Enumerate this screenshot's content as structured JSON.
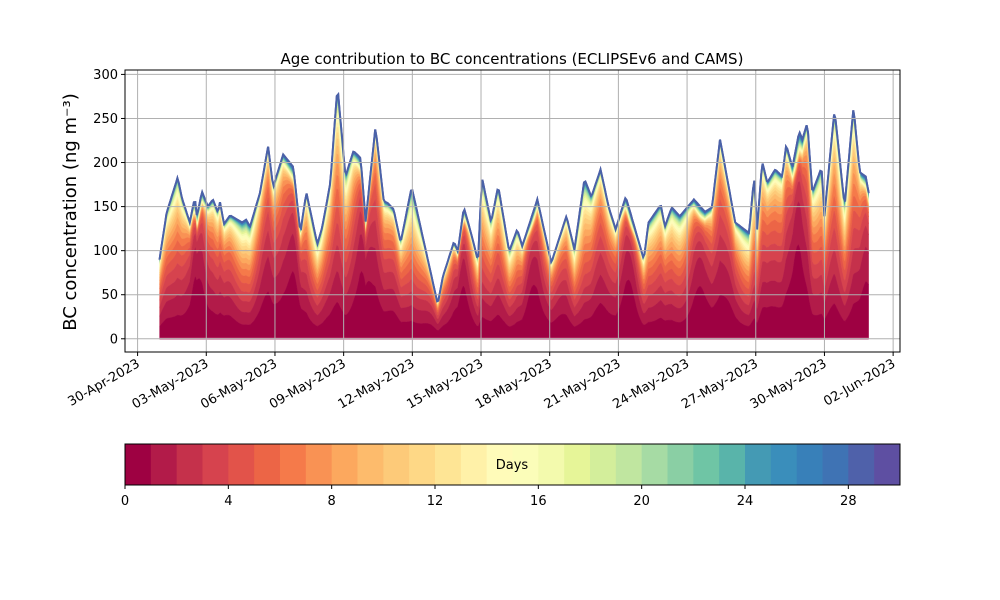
{
  "chart_data": {
    "type": "area",
    "stacked": true,
    "title": "Age contribution to BC concentrations (ECLIPSEv6 and CAMS)",
    "xlabel": "",
    "ylabel": "BC concentration (ng m⁻³)",
    "ylim": [
      -15,
      305
    ],
    "yticks": [
      0,
      50,
      100,
      150,
      200,
      250,
      300
    ],
    "x_unit": "days since 30-Apr-2023",
    "xlim": [
      -0.55,
      33.3
    ],
    "xticks": [
      0,
      3,
      6,
      9,
      12,
      15,
      18,
      21,
      24,
      27,
      30,
      33
    ],
    "xtick_labels": [
      "30-Apr-2023",
      "03-May-2023",
      "06-May-2023",
      "09-May-2023",
      "12-May-2023",
      "15-May-2023",
      "18-May-2023",
      "21-May-2023",
      "24-May-2023",
      "27-May-2023",
      "30-May-2023",
      "02-Jun-2023"
    ],
    "grid": true,
    "total": {
      "x": [
        0.96,
        1.27,
        1.75,
        1.93,
        2.28,
        2.5,
        2.59,
        2.81,
        3.07,
        3.29,
        3.51,
        3.6,
        3.77,
        4.04,
        4.56,
        4.74,
        4.91,
        5.35,
        5.7,
        5.92,
        6.36,
        6.8,
        7.11,
        7.37,
        7.85,
        8.07,
        8.42,
        8.73,
        9.08,
        9.43,
        9.74,
        9.96,
        10.39,
        10.75,
        10.92,
        11.18,
        11.49,
        11.97,
        13.11,
        13.33,
        13.82,
        13.99,
        14.25,
        14.56,
        14.87,
        15.04,
        15.44,
        15.75,
        16.23,
        16.58,
        16.8,
        17.46,
        18.07,
        18.73,
        19.08,
        19.52,
        19.82,
        20.22,
        20.57,
        20.88,
        21.32,
        22.11,
        22.32,
        22.85,
        23.03,
        23.33,
        23.68,
        24.3,
        24.78,
        25.09,
        25.44,
        26.1,
        26.4,
        26.71,
        26.93,
        27.06,
        27.28,
        27.5,
        27.85,
        28.16,
        28.33,
        28.6,
        28.9,
        29.04,
        29.25,
        29.47,
        29.87,
        30.0,
        30.44,
        30.88,
        31.27,
        31.54,
        31.8,
        31.93
      ],
      "y": [
        90,
        143,
        183,
        160,
        132,
        160,
        138,
        167,
        150,
        158,
        143,
        155,
        130,
        140,
        132,
        135,
        127,
        166,
        218,
        172,
        209,
        195,
        120,
        166,
        107,
        127,
        177,
        286,
        184,
        213,
        205,
        133,
        240,
        156,
        154,
        147,
        109,
        172,
        39,
        70,
        110,
        99,
        149,
        120,
        88,
        183,
        132,
        173,
        99,
        124,
        105,
        158,
        86,
        139,
        101,
        181,
        161,
        192,
        150,
        124,
        161,
        90,
        132,
        152,
        127,
        149,
        139,
        158,
        144,
        149,
        226,
        132,
        126,
        120,
        184,
        124,
        201,
        177,
        192,
        184,
        220,
        194,
        235,
        226,
        245,
        166,
        194,
        139,
        260,
        150,
        262,
        189,
        184,
        166
      ]
    },
    "colorbar": {
      "label": "Days",
      "range": [
        0,
        30
      ],
      "ticks": [
        0,
        4,
        8,
        12,
        16,
        20,
        24,
        28
      ],
      "tick_labels": [
        "0",
        "4",
        "8",
        "12",
        "16",
        "20",
        "24",
        "28"
      ],
      "colors": [
        "#9e0142",
        "#b21b49",
        "#c5314b",
        "#d6434e",
        "#e2534a",
        "#ec6546",
        "#f57a4a",
        "#f99254",
        "#fca85e",
        "#fdbb6c",
        "#fdca79",
        "#fed886",
        "#fee595",
        "#fff1a8",
        "#fffbb9",
        "#fbfdb9",
        "#f3faad",
        "#e6f598",
        "#d3ee9b",
        "#c0e6a0",
        "#a6dba4",
        "#8acfa4",
        "#6fc5a5",
        "#59b4aa",
        "#449ab4",
        "#3a8ebb",
        "#3880b9",
        "#3f73b4",
        "#4f61aa",
        "#5e4fa2"
      ]
    }
  }
}
